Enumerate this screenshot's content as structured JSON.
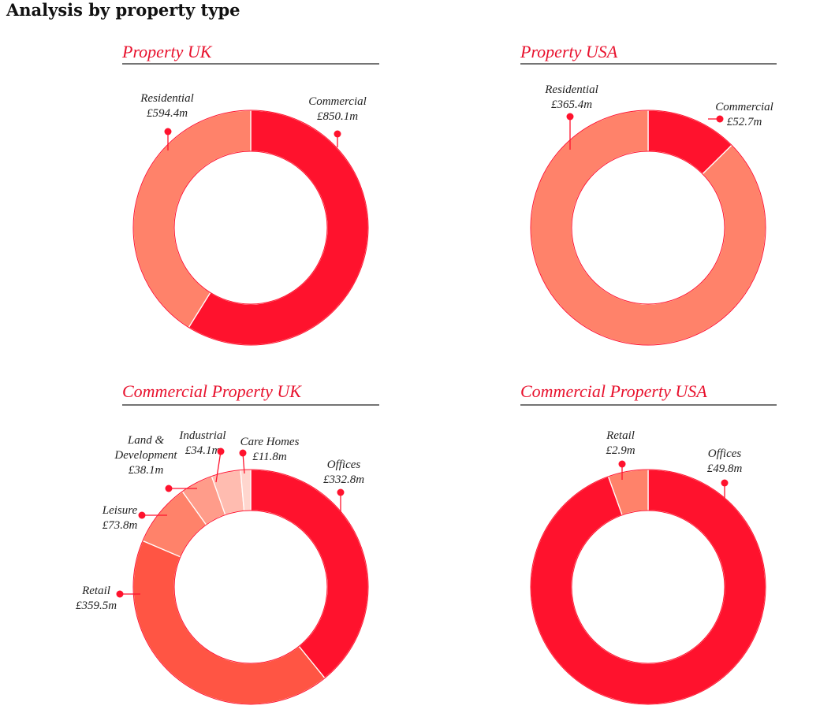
{
  "page_title": "Analysis by property type",
  "colors": {
    "red": "#FF122D",
    "salmon": "#FF826A",
    "coral": "#FF5544",
    "light_salmon": "#FF9C8A",
    "pale_salmon": "#FFBCB0",
    "blush": "#FFD6CE",
    "faint": "#FFECE8",
    "title_red": "#E8112D"
  },
  "chart_data": [
    {
      "type": "pie",
      "title": "Property UK",
      "slices": [
        {
          "label": "Commercial",
          "value": 850.1,
          "value_label": "£850.1m",
          "color": "#FF122D"
        },
        {
          "label": "Residential",
          "value": 594.4,
          "value_label": "£594.4m",
          "color": "#FF826A"
        }
      ]
    },
    {
      "type": "pie",
      "title": "Property USA",
      "slices": [
        {
          "label": "Commercial",
          "value": 52.7,
          "value_label": "£52.7m",
          "color": "#FF122D"
        },
        {
          "label": "Residential",
          "value": 365.4,
          "value_label": "£365.4m",
          "color": "#FF826A"
        }
      ]
    },
    {
      "type": "pie",
      "title": "Commercial Property UK",
      "slices": [
        {
          "label": "Offices",
          "value": 332.8,
          "value_label": "£332.8m",
          "color": "#FF122D"
        },
        {
          "label": "Retail",
          "value": 359.5,
          "value_label": "£359.5m",
          "color": "#FF5544"
        },
        {
          "label": "Leisure",
          "value": 73.8,
          "value_label": "£73.8m",
          "color": "#FF826A"
        },
        {
          "label": "Land & Development",
          "label_lines": [
            "Land &",
            "Development"
          ],
          "value": 38.1,
          "value_label": "£38.1m",
          "color": "#FF9C8A"
        },
        {
          "label": "Industrial",
          "value": 34.1,
          "value_label": "£34.1m",
          "color": "#FFBCB0"
        },
        {
          "label": "Care Homes",
          "value": 11.8,
          "value_label": "£11.8m",
          "color": "#FFD6CE"
        }
      ]
    },
    {
      "type": "pie",
      "title": "Commercial Property USA",
      "slices": [
        {
          "label": "Offices",
          "value": 49.8,
          "value_label": "£49.8m",
          "color": "#FF122D"
        },
        {
          "label": "Retail",
          "value": 2.9,
          "value_label": "£2.9m",
          "color": "#FF826A"
        }
      ]
    }
  ]
}
